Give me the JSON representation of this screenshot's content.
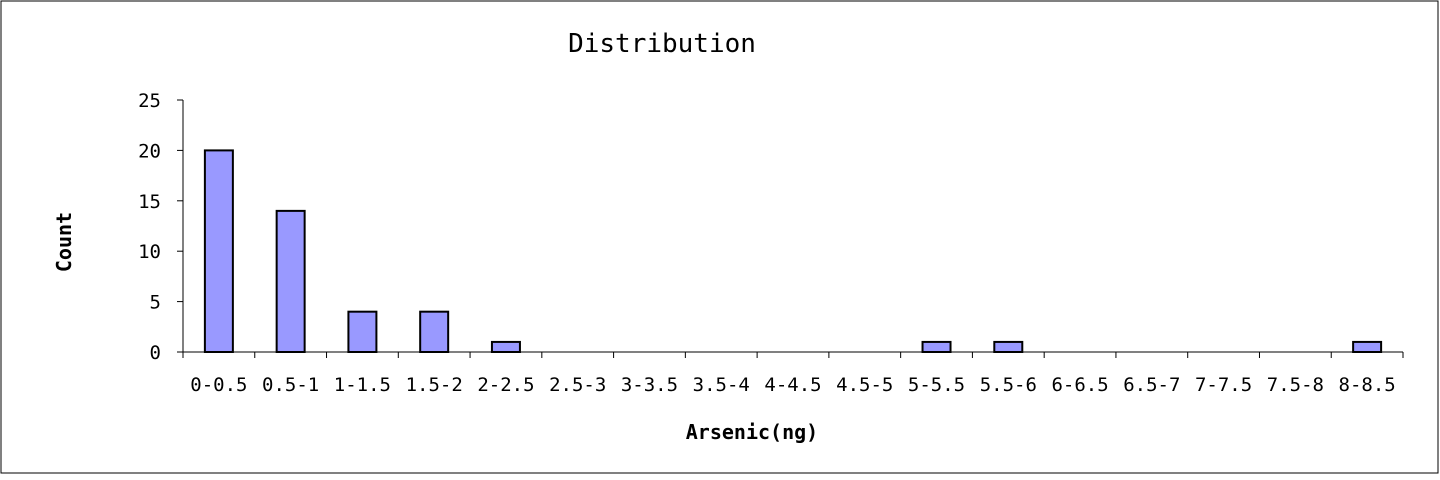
{
  "chart_data": {
    "type": "bar",
    "title": "Distribution",
    "xlabel": "Arsenic(ng)",
    "ylabel": "Count",
    "ylim": [
      0,
      25
    ],
    "yticks": [
      0,
      5,
      10,
      15,
      20,
      25
    ],
    "categories": [
      "0-0.5",
      "0.5-1",
      "1-1.5",
      "1.5-2",
      "2-2.5",
      "2.5-3",
      "3-3.5",
      "3.5-4",
      "4-4.5",
      "4.5-5",
      "5-5.5",
      "5.5-6",
      "6-6.5",
      "6.5-7",
      "7-7.5",
      "7.5-8",
      "8-8.5"
    ],
    "values": [
      20,
      14,
      4,
      4,
      1,
      0,
      0,
      0,
      0,
      0,
      1,
      1,
      0,
      0,
      0,
      0,
      1
    ],
    "bar_color": "#9999ff",
    "bar_edge_color": "#000000",
    "grid": false,
    "legend": "none"
  }
}
